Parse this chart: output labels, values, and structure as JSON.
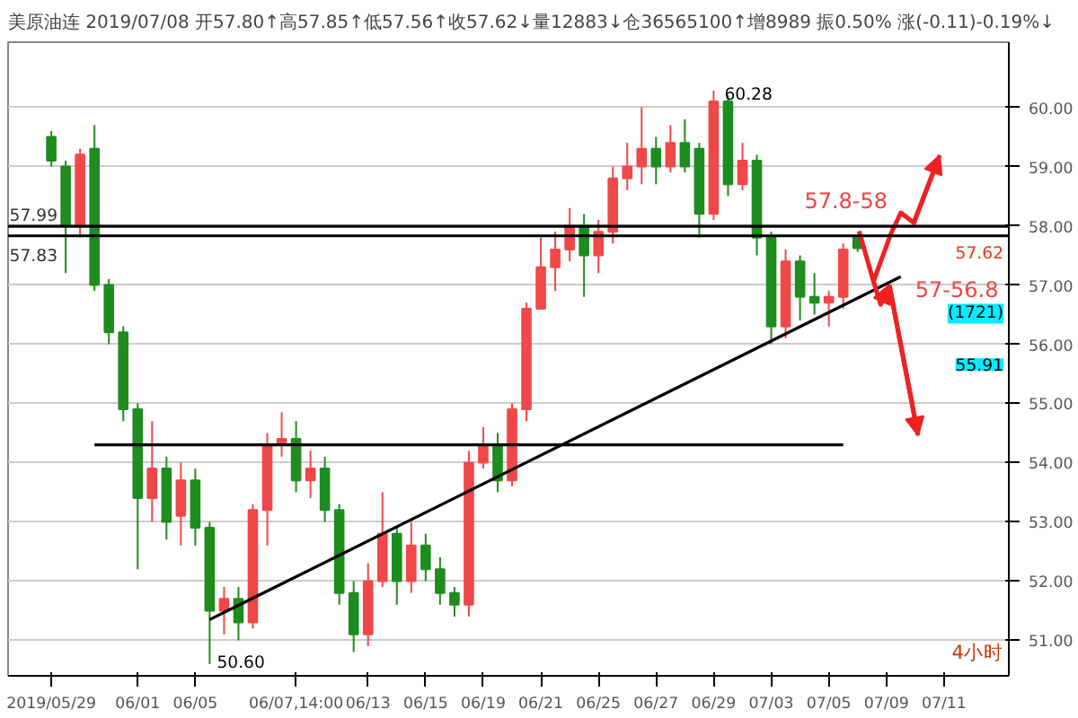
{
  "chart_data": {
    "type": "candlestick",
    "title": "美原油连 2019/07/08 开57.80↑高57.85↑低57.56↑收57.62↓量12883↓仓36565100↑增8989 振0.50% 涨(-0.11)-0.19%↓",
    "categories": [
      "2019/05/29",
      null,
      null,
      null,
      null,
      null,
      "06/01",
      null,
      null,
      null,
      "06/05",
      null,
      null,
      null,
      null,
      null,
      null,
      "06/07,14:00",
      null,
      null,
      null,
      null,
      "06/13",
      null,
      null,
      null,
      "06/15",
      null,
      null,
      null,
      "06/19",
      null,
      null,
      null,
      "06/21",
      null,
      null,
      null,
      "06/25",
      null,
      null,
      null,
      "06/27",
      null,
      null,
      null,
      "06/29",
      null,
      null,
      null,
      "07/03",
      null,
      null,
      null,
      "07/05",
      null,
      null,
      null,
      "07/09",
      null,
      null,
      null,
      "07/11",
      null,
      null,
      null,
      null
    ],
    "ohlc": [
      [
        59.5,
        59.6,
        59.0,
        59.1
      ],
      [
        59.0,
        59.1,
        57.2,
        58.0
      ],
      [
        58.0,
        59.3,
        57.8,
        59.2
      ],
      [
        59.3,
        59.7,
        56.9,
        57.0
      ],
      [
        57.0,
        57.1,
        56.0,
        56.2
      ],
      [
        56.2,
        56.3,
        54.7,
        54.9
      ],
      [
        54.9,
        55.0,
        52.2,
        53.4
      ],
      [
        53.4,
        54.7,
        53.0,
        53.9
      ],
      [
        53.9,
        54.1,
        52.7,
        53.0
      ],
      [
        53.1,
        54.0,
        52.6,
        53.7
      ],
      [
        53.7,
        53.9,
        52.6,
        52.9
      ],
      [
        52.9,
        53.0,
        50.6,
        51.5
      ],
      [
        51.5,
        51.9,
        51.1,
        51.7
      ],
      [
        51.7,
        51.9,
        51.0,
        51.3
      ],
      [
        51.3,
        53.3,
        51.2,
        53.2
      ],
      [
        53.2,
        54.5,
        52.6,
        54.3
      ],
      [
        54.3,
        54.85,
        54.1,
        54.4
      ],
      [
        54.4,
        54.7,
        53.5,
        53.7
      ],
      [
        53.7,
        54.2,
        53.4,
        53.9
      ],
      [
        53.9,
        54.1,
        53.0,
        53.2
      ],
      [
        53.2,
        53.3,
        51.6,
        51.8
      ],
      [
        51.8,
        52.0,
        50.8,
        51.1
      ],
      [
        51.1,
        52.3,
        50.9,
        52.0
      ],
      [
        52.0,
        53.5,
        51.9,
        52.8
      ],
      [
        52.8,
        52.9,
        51.6,
        52.0
      ],
      [
        52.0,
        53.0,
        51.8,
        52.6
      ],
      [
        52.6,
        52.8,
        52.0,
        52.2
      ],
      [
        52.2,
        52.4,
        51.6,
        51.8
      ],
      [
        51.8,
        51.9,
        51.4,
        51.6
      ],
      [
        51.6,
        54.2,
        51.4,
        54.0
      ],
      [
        54.0,
        54.6,
        53.9,
        54.3
      ],
      [
        54.3,
        54.5,
        53.5,
        53.7
      ],
      [
        53.7,
        55.0,
        53.6,
        54.9
      ],
      [
        54.9,
        56.7,
        54.7,
        56.6
      ],
      [
        56.6,
        57.8,
        56.6,
        57.3
      ],
      [
        57.3,
        57.9,
        56.9,
        57.6
      ],
      [
        57.6,
        58.3,
        57.4,
        58.0
      ],
      [
        58.0,
        58.2,
        56.8,
        57.5
      ],
      [
        57.5,
        58.1,
        57.2,
        57.9
      ],
      [
        57.9,
        59.0,
        57.7,
        58.8
      ],
      [
        58.8,
        59.4,
        58.6,
        59.0
      ],
      [
        59.0,
        60.0,
        58.7,
        59.3
      ],
      [
        59.3,
        59.5,
        58.7,
        59.0
      ],
      [
        59.0,
        59.7,
        58.9,
        59.4
      ],
      [
        59.4,
        59.8,
        58.9,
        59.0
      ],
      [
        59.3,
        59.4,
        57.8,
        58.2
      ],
      [
        58.2,
        60.28,
        58.1,
        60.1
      ],
      [
        60.1,
        60.2,
        58.5,
        58.7
      ],
      [
        58.7,
        59.4,
        58.6,
        59.1
      ],
      [
        59.1,
        59.2,
        57.5,
        57.8
      ],
      [
        57.8,
        57.9,
        56.0,
        56.3
      ],
      [
        56.3,
        57.6,
        56.1,
        57.4
      ],
      [
        57.4,
        57.5,
        56.4,
        56.8
      ],
      [
        56.8,
        57.2,
        56.5,
        56.7
      ],
      [
        56.7,
        56.9,
        56.3,
        56.8
      ],
      [
        56.8,
        57.7,
        56.6,
        57.6
      ],
      [
        57.8,
        57.85,
        57.56,
        57.62
      ],
      null,
      null,
      null,
      null,
      null,
      null,
      null,
      null,
      null,
      null
    ],
    "series": [
      {
        "type": "line",
        "color": "#000000",
        "values": [
          null,
          null,
          null,
          null,
          null,
          null,
          null,
          null,
          null,
          null,
          null,
          51.35,
          null,
          null,
          null,
          null,
          null,
          null,
          null,
          null,
          null,
          null,
          null,
          null,
          null,
          null,
          null,
          null,
          null,
          null,
          null,
          null,
          null,
          null,
          null,
          null,
          null,
          null,
          null,
          null,
          null,
          null,
          null,
          null,
          null,
          null,
          null,
          null,
          null,
          null,
          null,
          null,
          null,
          null,
          null,
          null,
          null,
          null,
          null,
          57.14,
          null,
          null,
          null,
          null,
          null,
          null,
          null
        ]
      },
      {
        "type": "line",
        "color": "#000000",
        "values": [
          null,
          null,
          null,
          54.3,
          null,
          null,
          null,
          null,
          null,
          null,
          null,
          null,
          null,
          null,
          null,
          null,
          null,
          null,
          null,
          null,
          null,
          null,
          null,
          null,
          null,
          null,
          null,
          null,
          null,
          null,
          null,
          null,
          null,
          null,
          null,
          null,
          null,
          null,
          null,
          null,
          null,
          null,
          null,
          null,
          null,
          null,
          null,
          null,
          null,
          null,
          null,
          null,
          null,
          null,
          null,
          54.3,
          null,
          null,
          null,
          null,
          null,
          null,
          null,
          null,
          null,
          null,
          null
        ]
      }
    ],
    "ylim": [
      50.4,
      61.1
    ],
    "yticks": [
      {
        "value": 51,
        "label": "51.00"
      },
      {
        "value": 52,
        "label": "52.00"
      },
      {
        "value": 53,
        "label": "53.00"
      },
      {
        "value": 54,
        "label": "54.00"
      },
      {
        "value": 55,
        "label": "55.00"
      },
      {
        "value": 56,
        "label": "56.00"
      },
      {
        "value": 57,
        "label": "57.00"
      },
      {
        "value": 58,
        "label": "58.00"
      },
      {
        "value": 59,
        "label": "59.00"
      },
      {
        "value": 60,
        "label": "60.00"
      }
    ],
    "grid": "y",
    "ref_lines": [
      {
        "axis": "y",
        "value": 57.99,
        "label": "57.99",
        "color": "#000000"
      },
      {
        "axis": "y",
        "value": 57.83,
        "label": "57.83",
        "color": "#000000"
      }
    ],
    "annotations": [
      "60.28",
      "50.60",
      "57.8-58",
      "57-56.8",
      "57.62",
      "55.91",
      "(1721)",
      "4小时"
    ]
  }
}
